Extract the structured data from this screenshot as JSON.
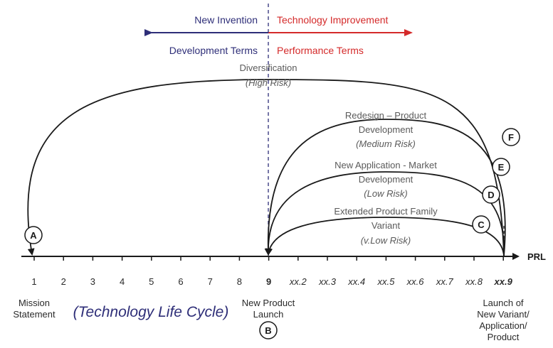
{
  "header": {
    "left_top": "New Invention",
    "right_top": "Technology Improvement",
    "left_bottom": "Development Terms",
    "right_bottom": "Performance Terms"
  },
  "arcs": {
    "diversification": {
      "label": "Diversification",
      "risk": "(High Risk)"
    },
    "redesign": {
      "label_1": "Redesign – Product",
      "label_2": "Development",
      "risk": "(Medium Risk)"
    },
    "new_application": {
      "label_1": "New Application - Market",
      "label_2": "Development",
      "risk": "(Low Risk)"
    },
    "extended": {
      "label_1": "Extended Product Family",
      "label_2": "Variant",
      "risk": "(v.Low Risk)"
    }
  },
  "markers": [
    "A",
    "B",
    "C",
    "D",
    "E",
    "F"
  ],
  "axis": {
    "label": "PRL",
    "ticks": [
      "1",
      "2",
      "3",
      "4",
      "5",
      "6",
      "7",
      "8",
      "9",
      "xx.2",
      "xx.3",
      "xx.4",
      "xx.5",
      "xx.6",
      "xx.7",
      "xx.8",
      "xx.9"
    ]
  },
  "bottom": {
    "mission_1": "Mission",
    "mission_2": "Statement",
    "lifecycle": "(Technology Life Cycle)",
    "launch_1": "New Product",
    "launch_2": "Launch",
    "variant_1": "Launch of",
    "variant_2": "New Variant/",
    "variant_3": "Application/",
    "variant_4": "Product"
  },
  "colors": {
    "navy": "#2e2e78",
    "red": "#d42a2a",
    "gray": "#5a5a5a"
  }
}
